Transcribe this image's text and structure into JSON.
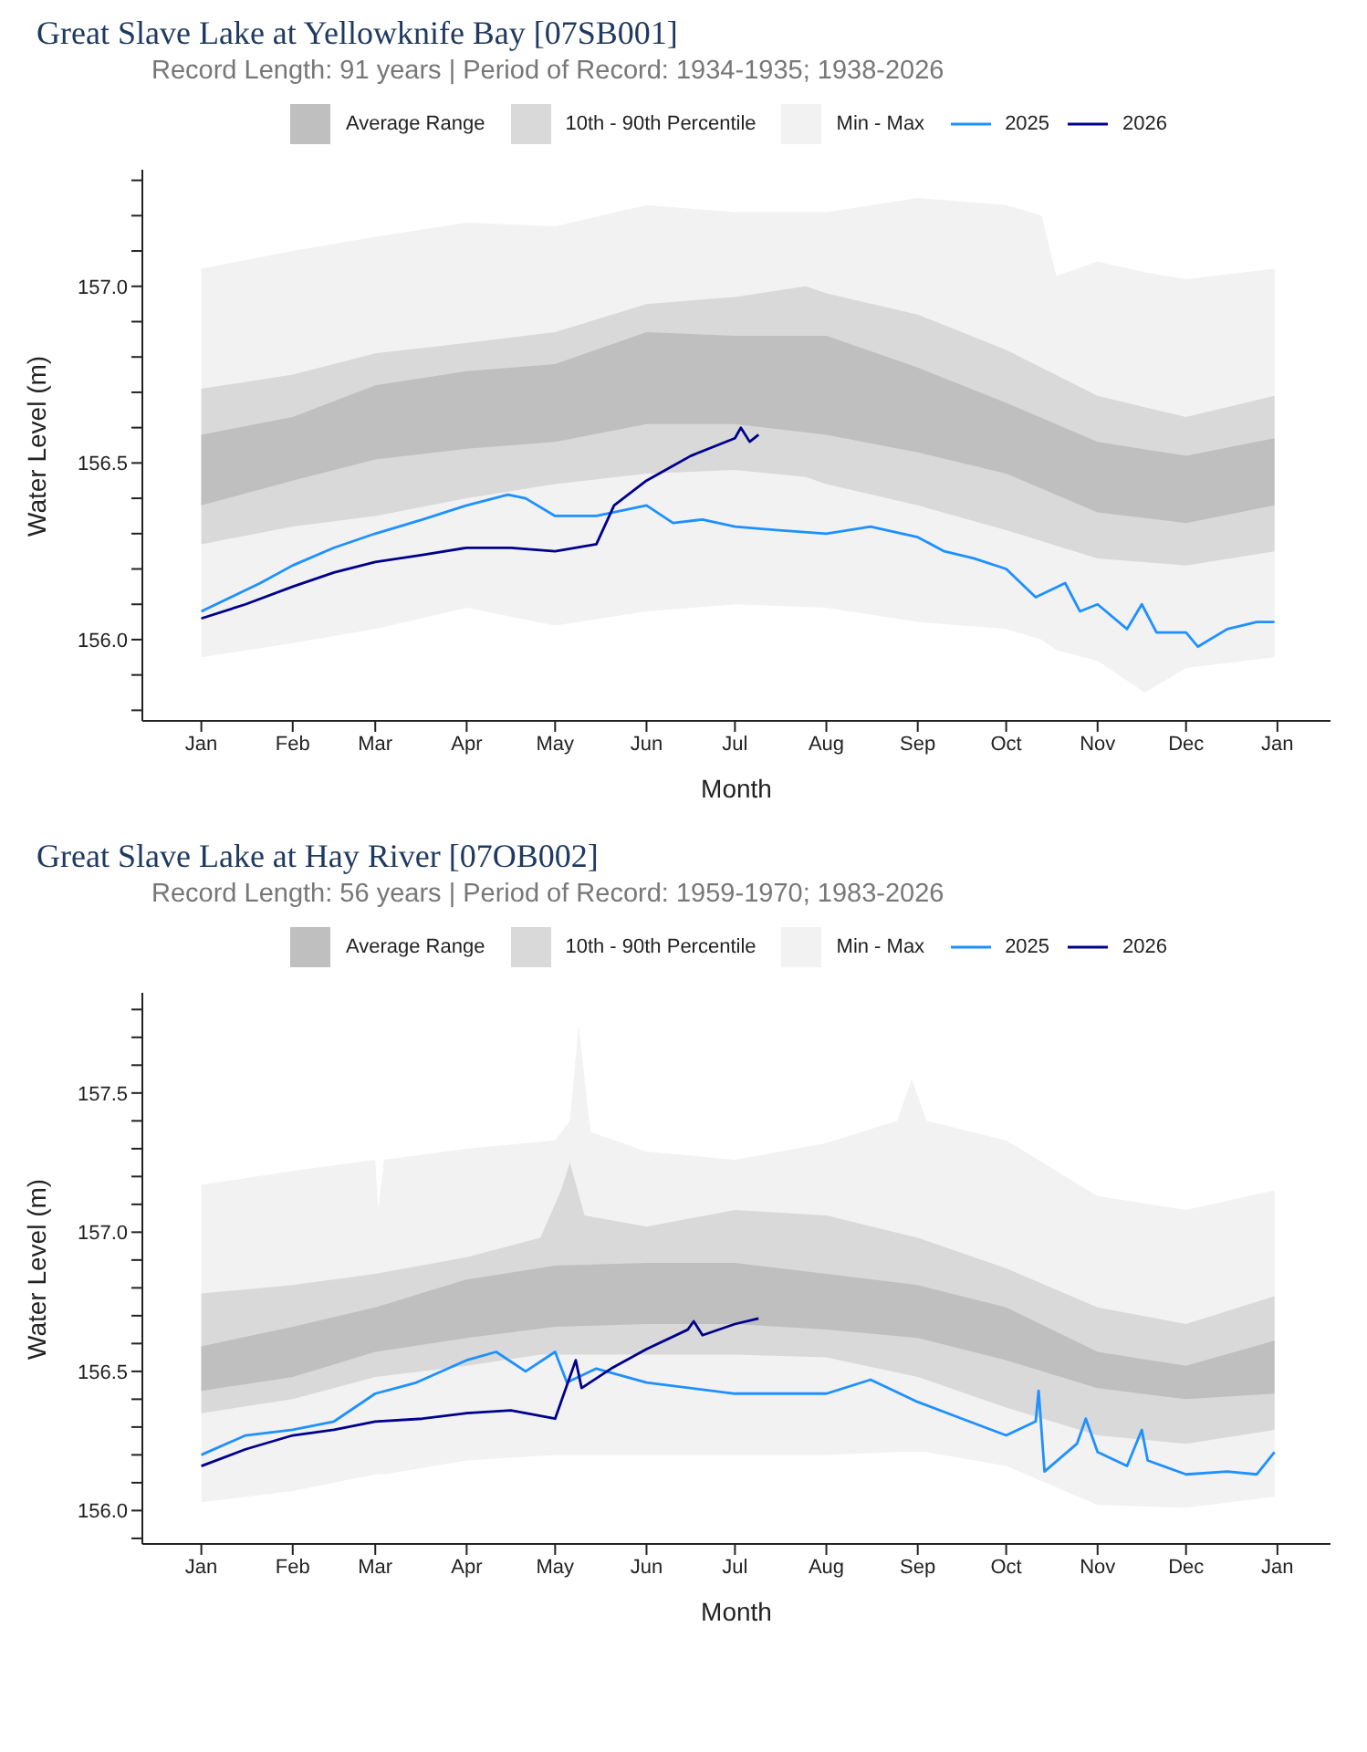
{
  "chart_data": [
    {
      "type": "line",
      "title": "Great Slave Lake at Yellowknife Bay [07SB001]",
      "subtitle": "Record Length: 91 years | Period of Record: 1934-1935; 1938-2026",
      "xlabel": "Month",
      "ylabel": "Water Level (m)",
      "legend": "top",
      "grid": false,
      "marker": "none",
      "line_style": "solid",
      "xlim": [
        "2024-12-12",
        "2026-01-19"
      ],
      "xticks": [
        {
          "value": "2025-01-01",
          "label": "Jan"
        },
        {
          "value": "2025-02-01",
          "label": "Feb"
        },
        {
          "value": "2025-03-01",
          "label": "Mar"
        },
        {
          "value": "2025-04-01",
          "label": "Apr"
        },
        {
          "value": "2025-05-01",
          "label": "May"
        },
        {
          "value": "2025-06-01",
          "label": "Jun"
        },
        {
          "value": "2025-07-01",
          "label": "Jul"
        },
        {
          "value": "2025-08-01",
          "label": "Aug"
        },
        {
          "value": "2025-09-01",
          "label": "Sep"
        },
        {
          "value": "2025-10-01",
          "label": "Oct"
        },
        {
          "value": "2025-11-01",
          "label": "Nov"
        },
        {
          "value": "2025-12-01",
          "label": "Dec"
        },
        {
          "value": "2026-01-01",
          "label": "Jan"
        }
      ],
      "ylim": [
        155.77,
        157.33
      ],
      "yticks": [
        {
          "value": 155.8,
          "label": null
        },
        {
          "value": 155.9,
          "label": null
        },
        {
          "value": 156,
          "label": "156.0"
        },
        {
          "value": 156.1,
          "label": null
        },
        {
          "value": 156.2,
          "label": null
        },
        {
          "value": 156.3,
          "label": null
        },
        {
          "value": 156.4,
          "label": null
        },
        {
          "value": 156.5,
          "label": "156.5"
        },
        {
          "value": 156.6,
          "label": null
        },
        {
          "value": 156.7,
          "label": null
        },
        {
          "value": 156.8,
          "label": null
        },
        {
          "value": 156.9,
          "label": null
        },
        {
          "value": 157,
          "label": "157.0"
        },
        {
          "value": 157.1,
          "label": null
        },
        {
          "value": 157.2,
          "label": null
        },
        {
          "value": 157.3,
          "label": null
        }
      ],
      "series": [
        {
          "name": "Average Range",
          "type": "line",
          "color": "#bfbfbf",
          "x": [
            "2025-01-01",
            "2025-02-01",
            "2025-03-01",
            "2025-04-01",
            "2025-05-01",
            "2025-06-01",
            "2025-07-01",
            "2025-08-01",
            "2025-09-01",
            "2025-10-01",
            "2025-11-01",
            "2025-12-01",
            "2025-12-31"
          ],
          "values": [
            null,
            null,
            null,
            null,
            null,
            null,
            null,
            null,
            null,
            null,
            null,
            null,
            null
          ],
          "upper": [
            156.58,
            156.63,
            156.72,
            156.76,
            156.78,
            156.87,
            156.86,
            156.86,
            156.77,
            156.67,
            156.56,
            156.52,
            156.57
          ],
          "lower": [
            156.38,
            156.45,
            156.51,
            156.54,
            156.56,
            156.61,
            156.61,
            156.58,
            156.53,
            156.47,
            156.36,
            156.33,
            156.38
          ]
        },
        {
          "name": "10th - 90th Percentile",
          "type": "line",
          "color": "#d9d9d9",
          "x": [
            "2025-01-01",
            "2025-02-01",
            "2025-03-01",
            "2025-04-01",
            "2025-05-01",
            "2025-06-01",
            "2025-07-01",
            "2025-07-25",
            "2025-08-01",
            "2025-09-01",
            "2025-10-01",
            "2025-11-01",
            "2025-12-01",
            "2025-12-31"
          ],
          "values": [
            null,
            null,
            null,
            null,
            null,
            null,
            null,
            null,
            null,
            null,
            null,
            null,
            null,
            null
          ],
          "upper": [
            156.71,
            156.75,
            156.81,
            156.84,
            156.87,
            156.95,
            156.97,
            157.0,
            156.98,
            156.92,
            156.82,
            156.69,
            156.63,
            156.69
          ],
          "lower": [
            156.27,
            156.32,
            156.35,
            156.4,
            156.44,
            156.47,
            156.48,
            156.46,
            156.44,
            156.38,
            156.31,
            156.23,
            156.21,
            156.25
          ]
        },
        {
          "name": "Min - Max",
          "type": "line",
          "color": "#f2f2f2",
          "x": [
            "2025-01-01",
            "2025-02-01",
            "2025-03-01",
            "2025-04-01",
            "2025-05-01",
            "2025-06-01",
            "2025-07-01",
            "2025-08-01",
            "2025-09-01",
            "2025-10-01",
            "2025-10-13",
            "2025-10-18",
            "2025-11-01",
            "2025-11-17",
            "2025-12-01",
            "2025-12-31"
          ],
          "values": [
            null,
            null,
            null,
            null,
            null,
            null,
            null,
            null,
            null,
            null,
            null,
            null,
            null,
            null,
            null,
            null
          ],
          "upper": [
            157.05,
            157.1,
            157.14,
            157.18,
            157.17,
            157.23,
            157.21,
            157.21,
            157.25,
            157.23,
            157.2,
            157.03,
            157.07,
            157.04,
            157.02,
            157.05
          ],
          "lower": [
            155.95,
            155.99,
            156.03,
            156.09,
            156.04,
            156.08,
            156.1,
            156.09,
            156.05,
            156.03,
            156.0,
            155.97,
            155.94,
            155.85,
            155.92,
            155.95
          ]
        },
        {
          "name": "2025",
          "type": "line",
          "color": "#1e90ff",
          "x": [
            "2025-01-01",
            "2025-01-11",
            "2025-01-21",
            "2025-02-01",
            "2025-02-15",
            "2025-03-01",
            "2025-03-17",
            "2025-04-01",
            "2025-04-15",
            "2025-04-21",
            "2025-05-01",
            "2025-05-15",
            "2025-06-01",
            "2025-06-10",
            "2025-06-20",
            "2025-07-01",
            "2025-07-15",
            "2025-08-01",
            "2025-08-16",
            "2025-09-01",
            "2025-09-10",
            "2025-09-20",
            "2025-10-01",
            "2025-10-11",
            "2025-10-21",
            "2025-10-26",
            "2025-11-01",
            "2025-11-11",
            "2025-11-16",
            "2025-11-21",
            "2025-12-01",
            "2025-12-05",
            "2025-12-15",
            "2025-12-25",
            "2025-12-31"
          ],
          "values": [
            156.08,
            156.12,
            156.16,
            156.21,
            156.26,
            156.3,
            156.34,
            156.38,
            156.41,
            156.4,
            156.35,
            156.35,
            156.38,
            156.33,
            156.34,
            156.32,
            156.31,
            156.3,
            156.32,
            156.29,
            156.25,
            156.23,
            156.2,
            156.12,
            156.16,
            156.08,
            156.1,
            156.03,
            156.1,
            156.02,
            156.02,
            155.98,
            156.03,
            156.05,
            156.05
          ]
        },
        {
          "name": "2026",
          "type": "line",
          "color": "#00008b",
          "x": [
            "2025-01-01",
            "2025-01-16",
            "2025-02-01",
            "2025-02-15",
            "2025-03-01",
            "2025-03-17",
            "2025-04-01",
            "2025-04-16",
            "2025-05-01",
            "2025-05-15",
            "2025-05-21",
            "2025-06-01",
            "2025-06-16",
            "2025-07-01",
            "2025-07-03",
            "2025-07-06",
            "2025-07-09"
          ],
          "values": [
            156.06,
            156.1,
            156.15,
            156.19,
            156.22,
            156.24,
            156.26,
            156.26,
            156.25,
            156.27,
            156.38,
            156.45,
            156.52,
            156.57,
            156.6,
            156.56,
            156.58
          ]
        }
      ]
    },
    {
      "type": "line",
      "title": "Great Slave Lake at Hay River [07OB002]",
      "subtitle": "Record Length: 56 years | Period of Record: 1959-1970; 1983-2026",
      "xlabel": "Month",
      "ylabel": "Water Level (m)",
      "legend": "top",
      "grid": false,
      "marker": "none",
      "line_style": "solid",
      "xlim": [
        "2024-12-12",
        "2026-01-19"
      ],
      "xticks": [
        {
          "value": "2025-01-01",
          "label": "Jan"
        },
        {
          "value": "2025-02-01",
          "label": "Feb"
        },
        {
          "value": "2025-03-01",
          "label": "Mar"
        },
        {
          "value": "2025-04-01",
          "label": "Apr"
        },
        {
          "value": "2025-05-01",
          "label": "May"
        },
        {
          "value": "2025-06-01",
          "label": "Jun"
        },
        {
          "value": "2025-07-01",
          "label": "Jul"
        },
        {
          "value": "2025-08-01",
          "label": "Aug"
        },
        {
          "value": "2025-09-01",
          "label": "Sep"
        },
        {
          "value": "2025-10-01",
          "label": "Oct"
        },
        {
          "value": "2025-11-01",
          "label": "Nov"
        },
        {
          "value": "2025-12-01",
          "label": "Dec"
        },
        {
          "value": "2026-01-01",
          "label": "Jan"
        }
      ],
      "ylim": [
        155.88,
        157.86
      ],
      "yticks": [
        {
          "value": 155.9,
          "label": null
        },
        {
          "value": 156,
          "label": "156.0"
        },
        {
          "value": 156.1,
          "label": null
        },
        {
          "value": 156.2,
          "label": null
        },
        {
          "value": 156.3,
          "label": null
        },
        {
          "value": 156.4,
          "label": null
        },
        {
          "value": 156.5,
          "label": "156.5"
        },
        {
          "value": 156.6,
          "label": null
        },
        {
          "value": 156.7,
          "label": null
        },
        {
          "value": 156.8,
          "label": null
        },
        {
          "value": 156.9,
          "label": null
        },
        {
          "value": 157,
          "label": "157.0"
        },
        {
          "value": 157.1,
          "label": null
        },
        {
          "value": 157.2,
          "label": null
        },
        {
          "value": 157.3,
          "label": null
        },
        {
          "value": 157.4,
          "label": null
        },
        {
          "value": 157.5,
          "label": "157.5"
        },
        {
          "value": 157.6,
          "label": null
        },
        {
          "value": 157.7,
          "label": null
        },
        {
          "value": 157.8,
          "label": null
        }
      ],
      "series": [
        {
          "name": "Average Range",
          "type": "line",
          "color": "#bfbfbf",
          "x": [
            "2025-01-01",
            "2025-02-01",
            "2025-03-01",
            "2025-04-01",
            "2025-05-01",
            "2025-06-01",
            "2025-07-01",
            "2025-08-01",
            "2025-09-01",
            "2025-10-01",
            "2025-11-01",
            "2025-12-01",
            "2025-12-31"
          ],
          "values": [
            null,
            null,
            null,
            null,
            null,
            null,
            null,
            null,
            null,
            null,
            null,
            null,
            null
          ],
          "upper": [
            156.59,
            156.66,
            156.73,
            156.83,
            156.88,
            156.89,
            156.89,
            156.85,
            156.81,
            156.73,
            156.57,
            156.52,
            156.61
          ],
          "lower": [
            156.43,
            156.48,
            156.57,
            156.62,
            156.66,
            156.67,
            156.67,
            156.65,
            156.62,
            156.54,
            156.44,
            156.4,
            156.42
          ]
        },
        {
          "name": "10th - 90th Percentile",
          "type": "line",
          "color": "#d9d9d9",
          "x": [
            "2025-01-01",
            "2025-02-01",
            "2025-03-01",
            "2025-04-01",
            "2025-04-26",
            "2025-05-03",
            "2025-05-06",
            "2025-05-11",
            "2025-06-01",
            "2025-07-01",
            "2025-08-01",
            "2025-09-01",
            "2025-10-01",
            "2025-11-01",
            "2025-12-01",
            "2025-12-31"
          ],
          "values": [
            null,
            null,
            null,
            null,
            null,
            null,
            null,
            null,
            null,
            null,
            null,
            null,
            null,
            null,
            null,
            null
          ],
          "upper": [
            156.78,
            156.81,
            156.85,
            156.91,
            156.98,
            157.15,
            157.25,
            157.06,
            157.02,
            157.08,
            157.06,
            156.98,
            156.87,
            156.73,
            156.67,
            156.77
          ],
          "lower": [
            156.35,
            156.4,
            156.48,
            156.52,
            156.56,
            156.56,
            156.56,
            156.56,
            156.56,
            156.56,
            156.55,
            156.48,
            156.37,
            156.27,
            156.24,
            156.29
          ]
        },
        {
          "name": "Min - Max",
          "type": "line",
          "color": "#f2f2f2",
          "x": [
            "2025-01-01",
            "2025-02-01",
            "2025-03-01",
            "2025-03-02",
            "2025-03-04",
            "2025-04-01",
            "2025-05-01",
            "2025-05-06",
            "2025-05-09",
            "2025-05-13",
            "2025-06-01",
            "2025-07-01",
            "2025-08-01",
            "2025-08-25",
            "2025-08-30",
            "2025-09-04",
            "2025-10-01",
            "2025-11-01",
            "2025-12-01",
            "2025-12-31"
          ],
          "values": [
            null,
            null,
            null,
            null,
            null,
            null,
            null,
            null,
            null,
            null,
            null,
            null,
            null,
            null,
            null,
            null,
            null,
            null,
            null,
            null
          ],
          "upper": [
            157.17,
            157.22,
            157.26,
            157.08,
            157.26,
            157.3,
            157.33,
            157.4,
            157.74,
            157.36,
            157.29,
            157.26,
            157.32,
            157.4,
            157.55,
            157.4,
            157.33,
            157.13,
            157.08,
            157.15
          ],
          "lower": [
            156.03,
            156.07,
            156.13,
            156.13,
            156.13,
            156.18,
            156.2,
            156.2,
            156.2,
            156.2,
            156.2,
            156.2,
            156.2,
            156.21,
            156.21,
            156.21,
            156.16,
            156.02,
            156.01,
            156.05
          ]
        },
        {
          "name": "2025",
          "type": "line",
          "color": "#1e90ff",
          "x": [
            "2025-01-01",
            "2025-01-16",
            "2025-02-01",
            "2025-02-15",
            "2025-03-01",
            "2025-03-15",
            "2025-04-01",
            "2025-04-11",
            "2025-04-21",
            "2025-05-01",
            "2025-05-05",
            "2025-05-15",
            "2025-06-01",
            "2025-07-01",
            "2025-08-01",
            "2025-08-16",
            "2025-09-01",
            "2025-09-16",
            "2025-10-01",
            "2025-10-11",
            "2025-10-12",
            "2025-10-14",
            "2025-10-25",
            "2025-10-28",
            "2025-11-01",
            "2025-11-11",
            "2025-11-16",
            "2025-11-18",
            "2025-12-01",
            "2025-12-15",
            "2025-12-25",
            "2025-12-31"
          ],
          "values": [
            156.2,
            156.27,
            156.29,
            156.32,
            156.42,
            156.46,
            156.54,
            156.57,
            156.5,
            156.57,
            156.46,
            156.51,
            156.46,
            156.42,
            156.42,
            156.47,
            156.39,
            156.33,
            156.27,
            156.32,
            156.43,
            156.14,
            156.24,
            156.33,
            156.21,
            156.16,
            156.29,
            156.18,
            156.13,
            156.14,
            156.13,
            156.21
          ]
        },
        {
          "name": "2026",
          "type": "line",
          "color": "#00008b",
          "x": [
            "2025-01-01",
            "2025-01-16",
            "2025-02-01",
            "2025-02-15",
            "2025-03-01",
            "2025-03-17",
            "2025-04-01",
            "2025-04-16",
            "2025-05-01",
            "2025-05-08",
            "2025-05-10",
            "2025-05-20",
            "2025-06-01",
            "2025-06-15",
            "2025-06-17",
            "2025-06-20",
            "2025-07-01",
            "2025-07-09"
          ],
          "values": [
            156.16,
            156.22,
            156.27,
            156.29,
            156.32,
            156.33,
            156.35,
            156.36,
            156.33,
            156.54,
            156.44,
            156.51,
            156.58,
            156.65,
            156.68,
            156.63,
            156.67,
            156.69
          ]
        }
      ]
    }
  ]
}
